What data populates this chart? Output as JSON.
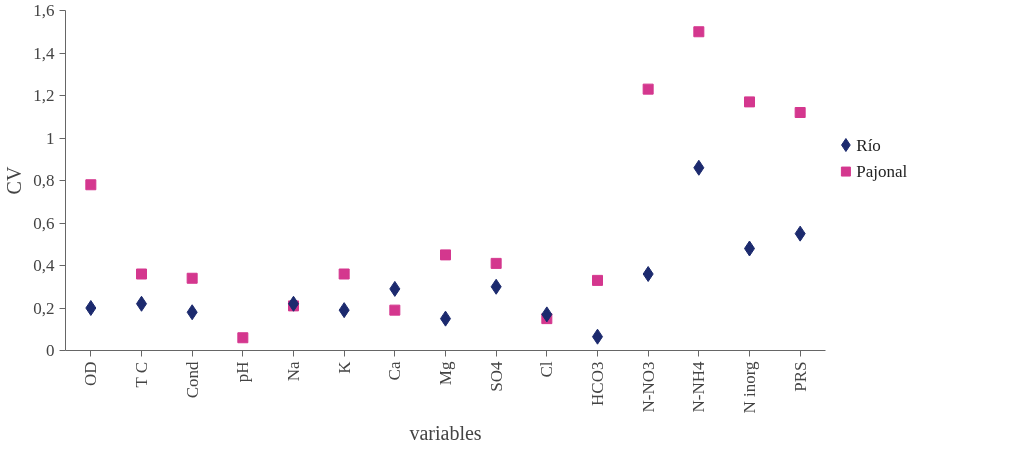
{
  "chart_data": {
    "type": "scatter",
    "xlabel": "variables",
    "ylabel": "CV",
    "categories": [
      "OD",
      "T C",
      "Cond",
      "pH",
      "Na",
      "K",
      "Ca",
      "Mg",
      "SO4",
      "Cl",
      "HCO3",
      "N-NO3",
      "N-NH4",
      "N inorg",
      "PRS"
    ],
    "ylim": [
      0,
      1.6
    ],
    "yticks": [
      0,
      {
        "value": 0.2,
        "label": "0,2"
      },
      {
        "value": 0.4,
        "label": "0,4"
      },
      {
        "value": 0.6,
        "label": "0,6"
      },
      {
        "value": 0.8,
        "label": "0,8"
      },
      1,
      {
        "value": 1.2,
        "label": "1,2"
      },
      {
        "value": 1.4,
        "label": "1,4"
      },
      {
        "value": 1.6,
        "label": "1,6"
      }
    ],
    "grid": false,
    "legend": "right",
    "series": [
      {
        "name": "Río",
        "color": "#1c2a6e",
        "marker": "diamond",
        "values": [
          0.2,
          0.22,
          0.18,
          null,
          0.22,
          0.19,
          0.29,
          0.15,
          0.3,
          0.17,
          0.065,
          0.36,
          0.86,
          0.48,
          0.55
        ]
      },
      {
        "name": "Pajonal",
        "color": "#d4378e",
        "marker": "square",
        "values": [
          0.78,
          0.36,
          0.34,
          0.06,
          0.21,
          0.36,
          0.19,
          0.45,
          0.41,
          0.15,
          0.33,
          1.23,
          1.5,
          1.17,
          1.12
        ]
      }
    ]
  }
}
